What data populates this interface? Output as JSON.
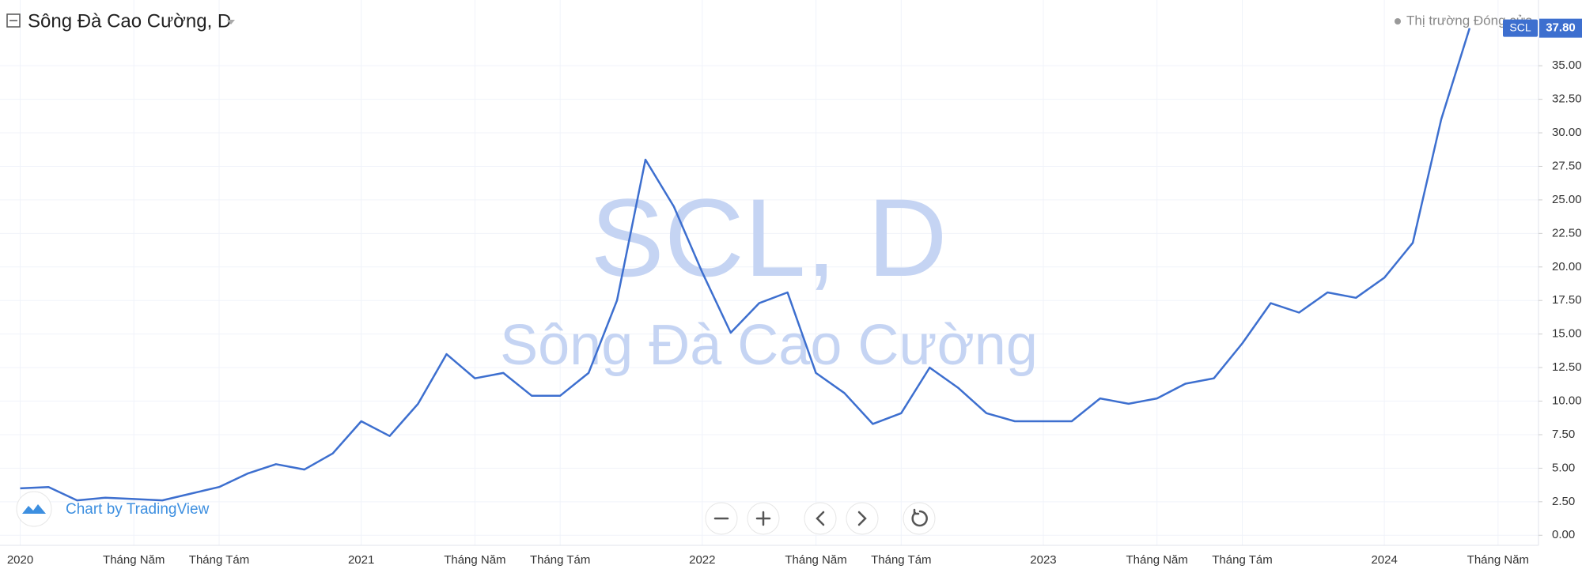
{
  "header": {
    "title": "Sông Đà Cao Cường, D",
    "status": "Thị trường Đóng cửa",
    "branding": "Chart by TradingView"
  },
  "watermark": {
    "symbol": "SCL, D",
    "name": "Sông Đà Cao Cường"
  },
  "chart_data": {
    "type": "line",
    "x": [
      "2020-01",
      "2020-02",
      "2020-03",
      "2020-04",
      "2020-05",
      "2020-06",
      "2020-07",
      "2020-08",
      "2020-09",
      "2020-10",
      "2020-11",
      "2020-12",
      "2021-01",
      "2021-02",
      "2021-03",
      "2021-04",
      "2021-05",
      "2021-06",
      "2021-07",
      "2021-08",
      "2021-09",
      "2021-10",
      "2021-11",
      "2021-12",
      "2022-01",
      "2022-02",
      "2022-03",
      "2022-04",
      "2022-05",
      "2022-06",
      "2022-07",
      "2022-08",
      "2022-09",
      "2022-10",
      "2022-11",
      "2022-12",
      "2023-01",
      "2023-02",
      "2023-03",
      "2023-04",
      "2023-05",
      "2023-06",
      "2023-07",
      "2023-08",
      "2023-09",
      "2023-10",
      "2023-11",
      "2023-12",
      "2024-01",
      "2024-02",
      "2024-03",
      "2024-04"
    ],
    "series": [
      {
        "name": "SCL",
        "color": "#3d6fcf",
        "values": [
          3.5,
          3.6,
          2.6,
          2.8,
          2.7,
          2.6,
          3.1,
          3.6,
          4.6,
          5.3,
          4.9,
          6.1,
          8.5,
          7.4,
          9.8,
          13.5,
          11.7,
          12.1,
          10.4,
          10.4,
          12.1,
          17.5,
          28.0,
          24.5,
          19.6,
          15.1,
          17.3,
          18.1,
          12.1,
          10.6,
          8.3,
          9.1,
          12.5,
          11.0,
          9.1,
          8.5,
          8.5,
          8.5,
          10.2,
          9.8,
          10.2,
          11.3,
          11.7,
          14.3,
          17.3,
          16.6,
          18.1,
          17.7,
          19.2,
          21.8,
          31.0,
          37.8
        ]
      }
    ],
    "last_price": {
      "value": 37.8,
      "label": "37.80"
    },
    "ylim": [
      -0.75,
      39.9
    ],
    "yticks": [
      {
        "value": 0,
        "label": "0.00"
      },
      {
        "value": 2.5,
        "label": "2.50"
      },
      {
        "value": 5,
        "label": "5.00"
      },
      {
        "value": 7.5,
        "label": "7.50"
      },
      {
        "value": 10,
        "label": "10.00"
      },
      {
        "value": 12.5,
        "label": "12.50"
      },
      {
        "value": 15,
        "label": "15.00"
      },
      {
        "value": 17.5,
        "label": "17.50"
      },
      {
        "value": 20,
        "label": "20.00"
      },
      {
        "value": 22.5,
        "label": "22.50"
      },
      {
        "value": 25,
        "label": "25.00"
      },
      {
        "value": 27.5,
        "label": "27.50"
      },
      {
        "value": 30,
        "label": "30.00"
      },
      {
        "value": 32.5,
        "label": "32.50"
      },
      {
        "value": 35,
        "label": "35.00"
      }
    ],
    "xticks": [
      {
        "value": "2020-01",
        "label": "2020"
      },
      {
        "value": "2020-05",
        "label": "Tháng Năm"
      },
      {
        "value": "2020-08",
        "label": "Tháng Tám"
      },
      {
        "value": "2021-01",
        "label": "2021"
      },
      {
        "value": "2021-05",
        "label": "Tháng Năm"
      },
      {
        "value": "2021-08",
        "label": "Tháng Tám"
      },
      {
        "value": "2022-01",
        "label": "2022"
      },
      {
        "value": "2022-05",
        "label": "Tháng Năm"
      },
      {
        "value": "2022-08",
        "label": "Tháng Tám"
      },
      {
        "value": "2023-01",
        "label": "2023"
      },
      {
        "value": "2023-05",
        "label": "Tháng Năm"
      },
      {
        "value": "2023-08",
        "label": "Tháng Tám"
      },
      {
        "value": "2024-01",
        "label": "2024"
      },
      {
        "value": "2024-05",
        "label": "Tháng Năm"
      }
    ],
    "grid": true
  }
}
